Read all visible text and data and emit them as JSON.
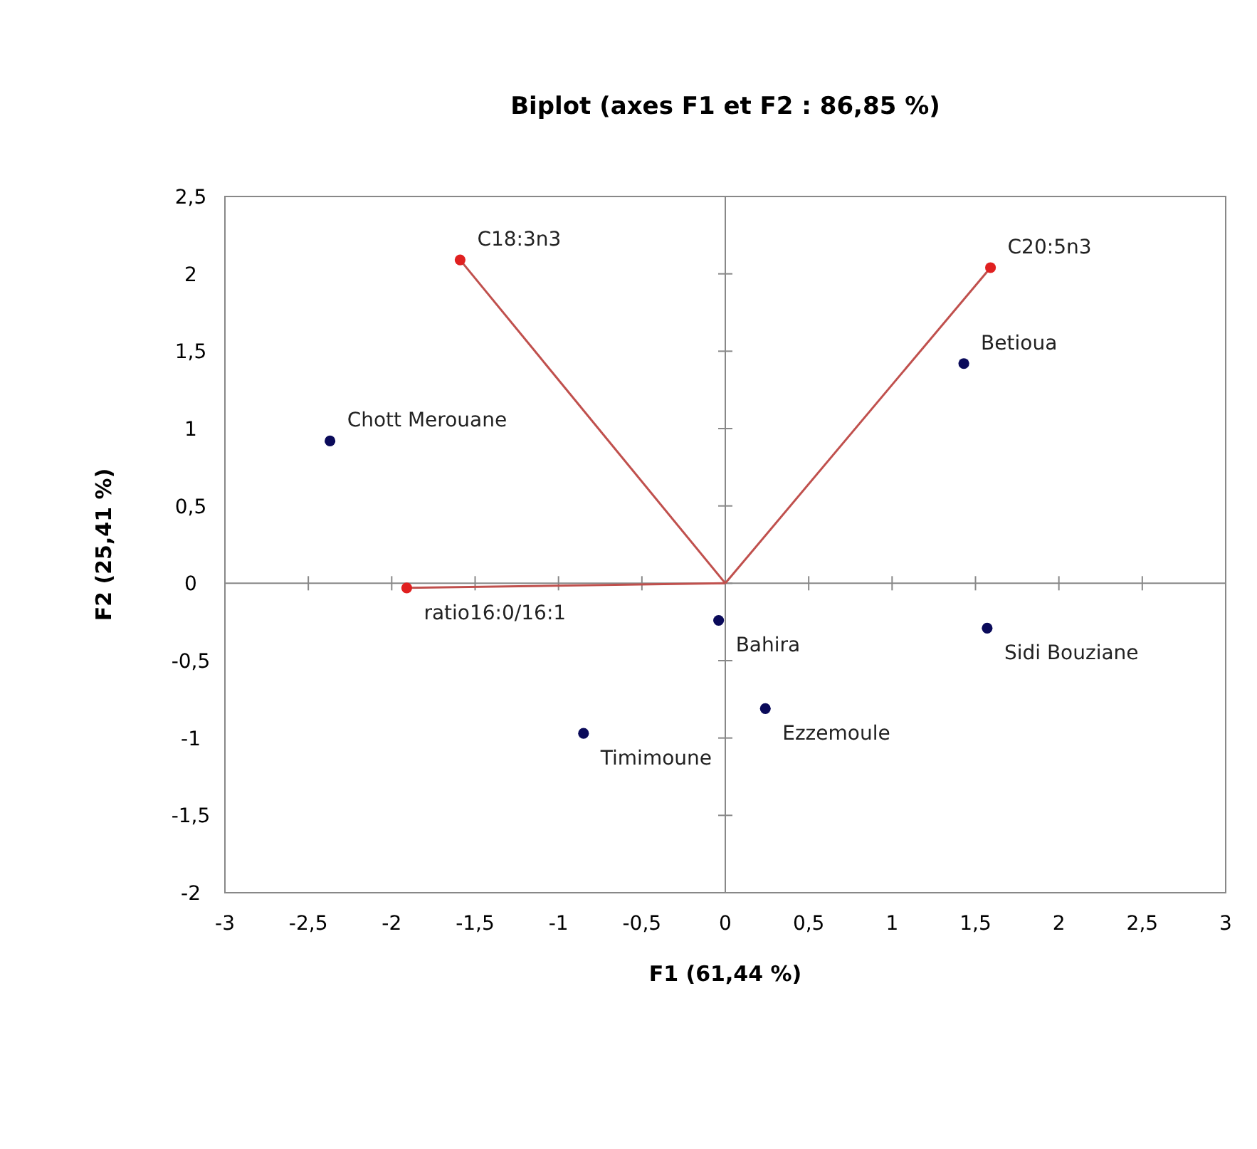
{
  "chart_data": {
    "type": "scatter",
    "title": "Biplot (axes F1 et F2 : 86,85 %)",
    "xlabel": "F1 (61,44 %)",
    "ylabel": "F2 (25,41 %)",
    "xlim": [
      -3,
      3
    ],
    "xticks": [
      {
        "value": -3,
        "label": "-3"
      },
      {
        "value": -2.5,
        "label": "-2,5"
      },
      {
        "value": -2,
        "label": "-2"
      },
      {
        "value": -1.5,
        "label": "-1,5"
      },
      {
        "value": -1,
        "label": "-1"
      },
      {
        "value": -0.5,
        "label": "-0,5"
      },
      {
        "value": 0,
        "label": "0"
      },
      {
        "value": 0.5,
        "label": "0,5"
      },
      {
        "value": 1,
        "label": "1"
      },
      {
        "value": 1.5,
        "label": "1,5"
      },
      {
        "value": 2,
        "label": "2"
      },
      {
        "value": 2.5,
        "label": "2,5"
      },
      {
        "value": 3,
        "label": "3"
      }
    ],
    "ylim": [
      -2,
      2.5
    ],
    "yticks": [
      {
        "value": -2,
        "label": "-2"
      },
      {
        "value": -1.5,
        "label": "-1,5"
      },
      {
        "value": -1,
        "label": "-1"
      },
      {
        "value": -0.5,
        "label": "-0,5"
      },
      {
        "value": 0,
        "label": "0"
      },
      {
        "value": 0.5,
        "label": "0,5"
      },
      {
        "value": 1,
        "label": "1"
      },
      {
        "value": 1.5,
        "label": "1,5"
      },
      {
        "value": 2,
        "label": "2"
      },
      {
        "value": 2.5,
        "label": "2,5"
      }
    ],
    "marker": "circle",
    "series": [
      {
        "type": "line",
        "marker": "none",
        "color": "#c0504d",
        "x": [
          0,
          -1.59
        ],
        "values": [
          0,
          2.09
        ]
      },
      {
        "type": "line",
        "marker": "none",
        "color": "#c0504d",
        "x": [
          0,
          1.59
        ],
        "values": [
          0,
          2.04
        ]
      },
      {
        "type": "line",
        "marker": "none",
        "color": "#c0504d",
        "x": [
          0,
          -1.91
        ],
        "values": [
          0,
          -0.03
        ]
      },
      {
        "color": "#0a0a5a",
        "x": [
          -2.37,
          1.43,
          1.57,
          0.24,
          -0.04,
          -0.85
        ],
        "values": [
          0.92,
          1.42,
          -0.29,
          -0.81,
          -0.24,
          -0.97
        ],
        "value_labels": [
          "Chott Merouane",
          "Betioua",
          "Sidi Bouziane",
          "Ezzemoule",
          "Bahira",
          "Timimoune"
        ]
      },
      {
        "color": "#e02020",
        "x": [
          -1.59,
          1.59,
          -1.91
        ],
        "values": [
          2.09,
          2.04,
          -0.03
        ],
        "value_labels": [
          "C18:3n3",
          "C20:5n3",
          "ratio16:0/16:1"
        ]
      }
    ]
  }
}
